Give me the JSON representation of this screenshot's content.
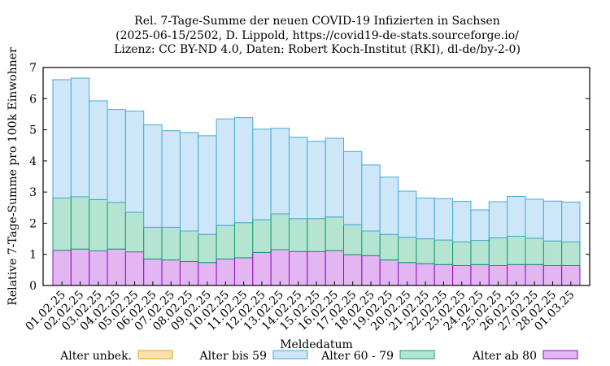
{
  "chart_data": {
    "type": "bar",
    "stacked": true,
    "title_lines": [
      "Rel. 7-Tage-Summe der neuen COVID-19 Infizierten in Sachsen",
      "(2025-06-15/2502, D. Lippold, https://covid19-de-stats.sourceforge.io/",
      "Lizenz: CC BY-ND 4.0, Daten: Robert Koch-Institut (RKI), dl-de/by-2-0)"
    ],
    "xlabel": "Meldedatum",
    "ylabel": "Relative 7-Tage-Summe pro 100k Einwohner",
    "ylim": [
      0,
      7
    ],
    "yticks": [
      0,
      1,
      2,
      3,
      4,
      5,
      6,
      7
    ],
    "categories": [
      "01.02.25",
      "02.02.25",
      "03.02.25",
      "04.02.25",
      "05.02.25",
      "06.02.25",
      "07.02.25",
      "08.02.25",
      "09.02.25",
      "10.02.25",
      "11.02.25",
      "12.02.25",
      "13.02.25",
      "14.02.25",
      "15.02.25",
      "16.02.25",
      "17.02.25",
      "18.02.25",
      "19.02.25",
      "20.02.25",
      "21.02.25",
      "22.02.25",
      "23.02.25",
      "24.02.25",
      "25.02.25",
      "26.02.25",
      "27.02.25",
      "28.02.25",
      "01.03.25"
    ],
    "series": [
      {
        "name": "Alter unbek.",
        "fill": "#fde2a8",
        "stroke": "#e0a020",
        "values": [
          0,
          0,
          0,
          0,
          0,
          0,
          0,
          0,
          0,
          0,
          0,
          0,
          0,
          0,
          0,
          0,
          0,
          0,
          0,
          0,
          0,
          0,
          0,
          0,
          0,
          0,
          0,
          0,
          0
        ]
      },
      {
        "name": "Alter ab 80",
        "fill": "#e3b6f2",
        "stroke": "#8a10b8",
        "values": [
          1.13,
          1.17,
          1.11,
          1.17,
          1.08,
          0.85,
          0.82,
          0.77,
          0.74,
          0.85,
          0.89,
          1.06,
          1.15,
          1.09,
          1.09,
          1.12,
          0.99,
          0.96,
          0.82,
          0.74,
          0.7,
          0.67,
          0.64,
          0.67,
          0.64,
          0.67,
          0.67,
          0.64,
          0.64
        ]
      },
      {
        "name": "Alter 60 - 79",
        "fill": "#b5e5d2",
        "stroke": "#159a70",
        "values": [
          1.68,
          1.68,
          1.65,
          1.5,
          1.27,
          1.02,
          1.05,
          0.98,
          0.9,
          1.08,
          1.13,
          1.05,
          1.15,
          1.06,
          1.06,
          1.08,
          0.96,
          0.79,
          0.82,
          0.81,
          0.8,
          0.79,
          0.76,
          0.78,
          0.89,
          0.91,
          0.85,
          0.79,
          0.76
        ]
      },
      {
        "name": "Alter bis 59",
        "fill": "#cde7f8",
        "stroke": "#46aad6",
        "values": [
          3.8,
          3.81,
          3.17,
          2.98,
          3.25,
          3.29,
          3.1,
          3.16,
          3.17,
          3.42,
          3.37,
          2.91,
          2.75,
          2.61,
          2.48,
          2.53,
          2.35,
          2.12,
          1.84,
          1.48,
          1.31,
          1.33,
          1.3,
          0.98,
          1.16,
          1.28,
          1.25,
          1.28,
          1.28
        ]
      }
    ],
    "legend": {
      "placement": "bottom",
      "order": [
        "Alter unbek.",
        "Alter bis 59",
        "Alter 60 - 79",
        "Alter ab 80"
      ]
    }
  }
}
